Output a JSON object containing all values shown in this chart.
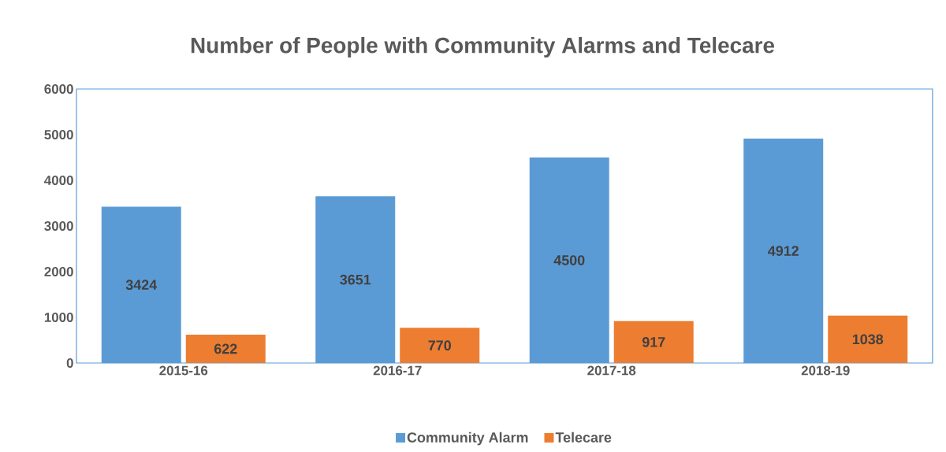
{
  "chart_data": {
    "type": "bar",
    "title": "Number of People with Community Alarms and Telecare",
    "categories": [
      "2015-16",
      "2016-17",
      "2017-18",
      "2018-19"
    ],
    "series": [
      {
        "name": "Community Alarm",
        "color": "#5b9bd5",
        "values": [
          3424,
          3651,
          4500,
          4912
        ]
      },
      {
        "name": "Telecare",
        "color": "#ed7d31",
        "values": [
          622,
          770,
          917,
          1038
        ]
      }
    ],
    "ylim": [
      0,
      6000
    ],
    "yticks": [
      0,
      1000,
      2000,
      3000,
      4000,
      5000,
      6000
    ],
    "data_labels": true,
    "legend": "bottom",
    "grid": false
  }
}
